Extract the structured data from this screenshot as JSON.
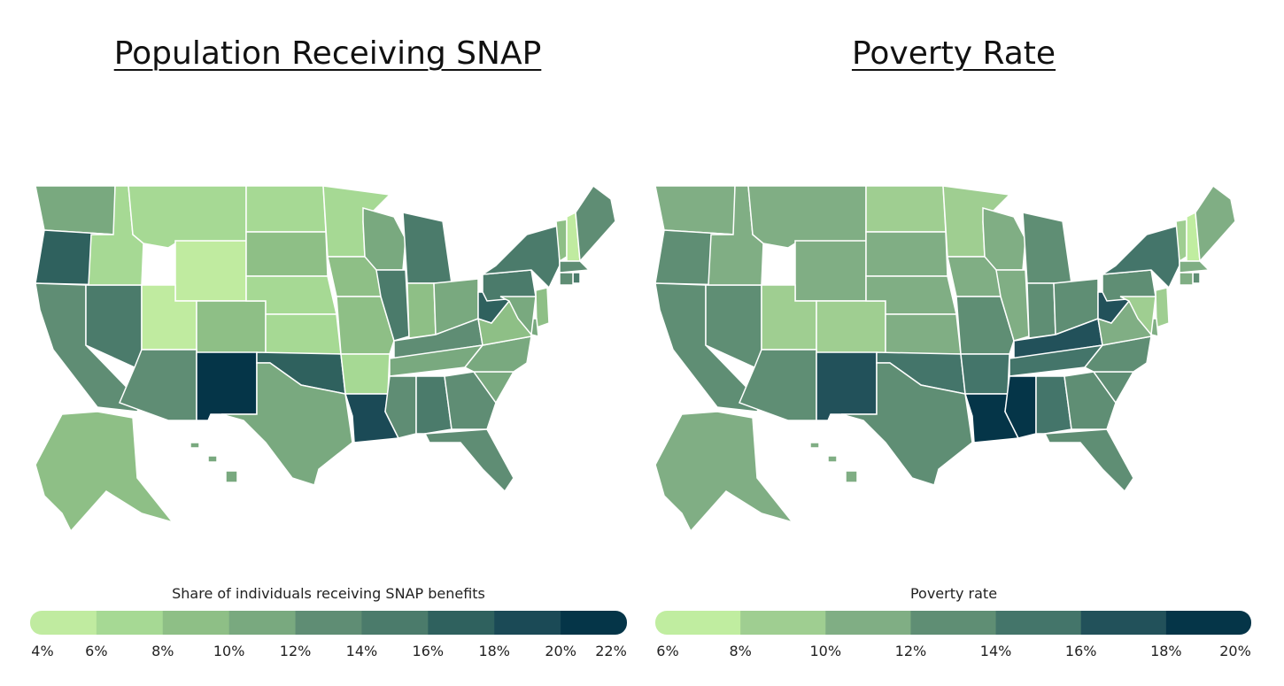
{
  "left": {
    "title": "Population Receiving SNAP",
    "legend_title": "Share of individuals receiving SNAP benefits",
    "ticks": [
      "4%",
      "6%",
      "8%",
      "10%",
      "12%",
      "14%",
      "16%",
      "18%",
      "20%",
      "22%"
    ],
    "colors": [
      "#c0eba0",
      "#a6d994",
      "#8ebf86",
      "#79a97f",
      "#5f8d74",
      "#4b7b6b",
      "#2f615e",
      "#1b4a56",
      "#053548"
    ]
  },
  "right": {
    "title": "Poverty Rate",
    "legend_title": "Poverty rate",
    "ticks": [
      "6%",
      "8%",
      "10%",
      "12%",
      "14%",
      "16%",
      "18%",
      "20%"
    ],
    "colors": [
      "#c0eda0",
      "#9fce91",
      "#80ae84",
      "#5f8e74",
      "#44756a",
      "#22515a",
      "#053548"
    ]
  },
  "chart_data": [
    {
      "type": "choropleth",
      "title": "Population Receiving SNAP",
      "legend_title": "Share of individuals receiving SNAP benefits",
      "bins": [
        [
          4,
          6
        ],
        [
          6,
          8
        ],
        [
          8,
          10
        ],
        [
          10,
          12
        ],
        [
          12,
          14
        ],
        [
          14,
          16
        ],
        [
          16,
          18
        ],
        [
          18,
          20
        ],
        [
          20,
          22
        ]
      ],
      "values_bin_range": {
        "WA": "10-12%",
        "OR": "16-18%",
        "CA": "12-14%",
        "NV": "14-16%",
        "ID": "6-8%",
        "MT": "6-8%",
        "WY": "4-6%",
        "UT": "4-6%",
        "CO": "8-10%",
        "AZ": "12-14%",
        "NM": "20-22%",
        "ND": "6-8%",
        "SD": "8-10%",
        "NE": "6-8%",
        "KS": "6-8%",
        "OK": "16-18%",
        "TX": "10-12%",
        "MN": "6-8%",
        "IA": "8-10%",
        "MO": "8-10%",
        "AR": "6-8%",
        "LA": "18-20%",
        "WI": "10-12%",
        "IL": "14-16%",
        "MI": "14-16%",
        "IN": "8-10%",
        "OH": "10-12%",
        "KY": "12-14%",
        "TN": "10-12%",
        "MS": "12-14%",
        "AL": "14-16%",
        "GA": "12-14%",
        "FL": "12-14%",
        "SC": "10-12%",
        "NC": "10-12%",
        "VA": "8-10%",
        "WV": "16-18%",
        "PA": "14-16%",
        "NY": "14-16%",
        "VT": "8-10%",
        "NH": "4-6%",
        "ME": "12-14%",
        "MA": "12-14%",
        "RI": "14-16%",
        "CT": "12-14%",
        "NJ": "8-10%",
        "DE": "10-12%",
        "MD": "10-12%",
        "AK": "8-10%",
        "HI": "10-12%"
      }
    },
    {
      "type": "choropleth",
      "title": "Poverty Rate",
      "legend_title": "Poverty rate",
      "bins": [
        [
          6,
          8
        ],
        [
          8,
          10
        ],
        [
          10,
          12
        ],
        [
          12,
          14
        ],
        [
          14,
          16
        ],
        [
          16,
          18
        ],
        [
          18,
          20
        ]
      ],
      "values_bin_range": {
        "WA": "10-12%",
        "OR": "12-14%",
        "CA": "12-14%",
        "NV": "12-14%",
        "ID": "10-12%",
        "MT": "10-12%",
        "WY": "10-12%",
        "UT": "8-10%",
        "CO": "8-10%",
        "AZ": "12-14%",
        "NM": "16-18%",
        "ND": "8-10%",
        "SD": "10-12%",
        "NE": "10-12%",
        "KS": "10-12%",
        "OK": "14-16%",
        "TX": "12-14%",
        "MN": "8-10%",
        "IA": "10-12%",
        "MO": "12-14%",
        "AR": "14-16%",
        "LA": "18-20%",
        "WI": "10-12%",
        "IL": "10-12%",
        "MI": "12-14%",
        "IN": "12-14%",
        "OH": "12-14%",
        "KY": "16-18%",
        "TN": "14-16%",
        "MS": "18-20%",
        "AL": "14-16%",
        "GA": "12-14%",
        "FL": "12-14%",
        "SC": "12-14%",
        "NC": "12-14%",
        "VA": "10-12%",
        "WV": "16-18%",
        "PA": "12-14%",
        "NY": "14-16%",
        "VT": "8-10%",
        "NH": "6-8%",
        "ME": "10-12%",
        "MA": "10-12%",
        "RI": "12-14%",
        "CT": "10-12%",
        "NJ": "8-10%",
        "DE": "10-12%",
        "MD": "8-10%",
        "AK": "10-12%",
        "HI": "10-12%"
      }
    }
  ]
}
